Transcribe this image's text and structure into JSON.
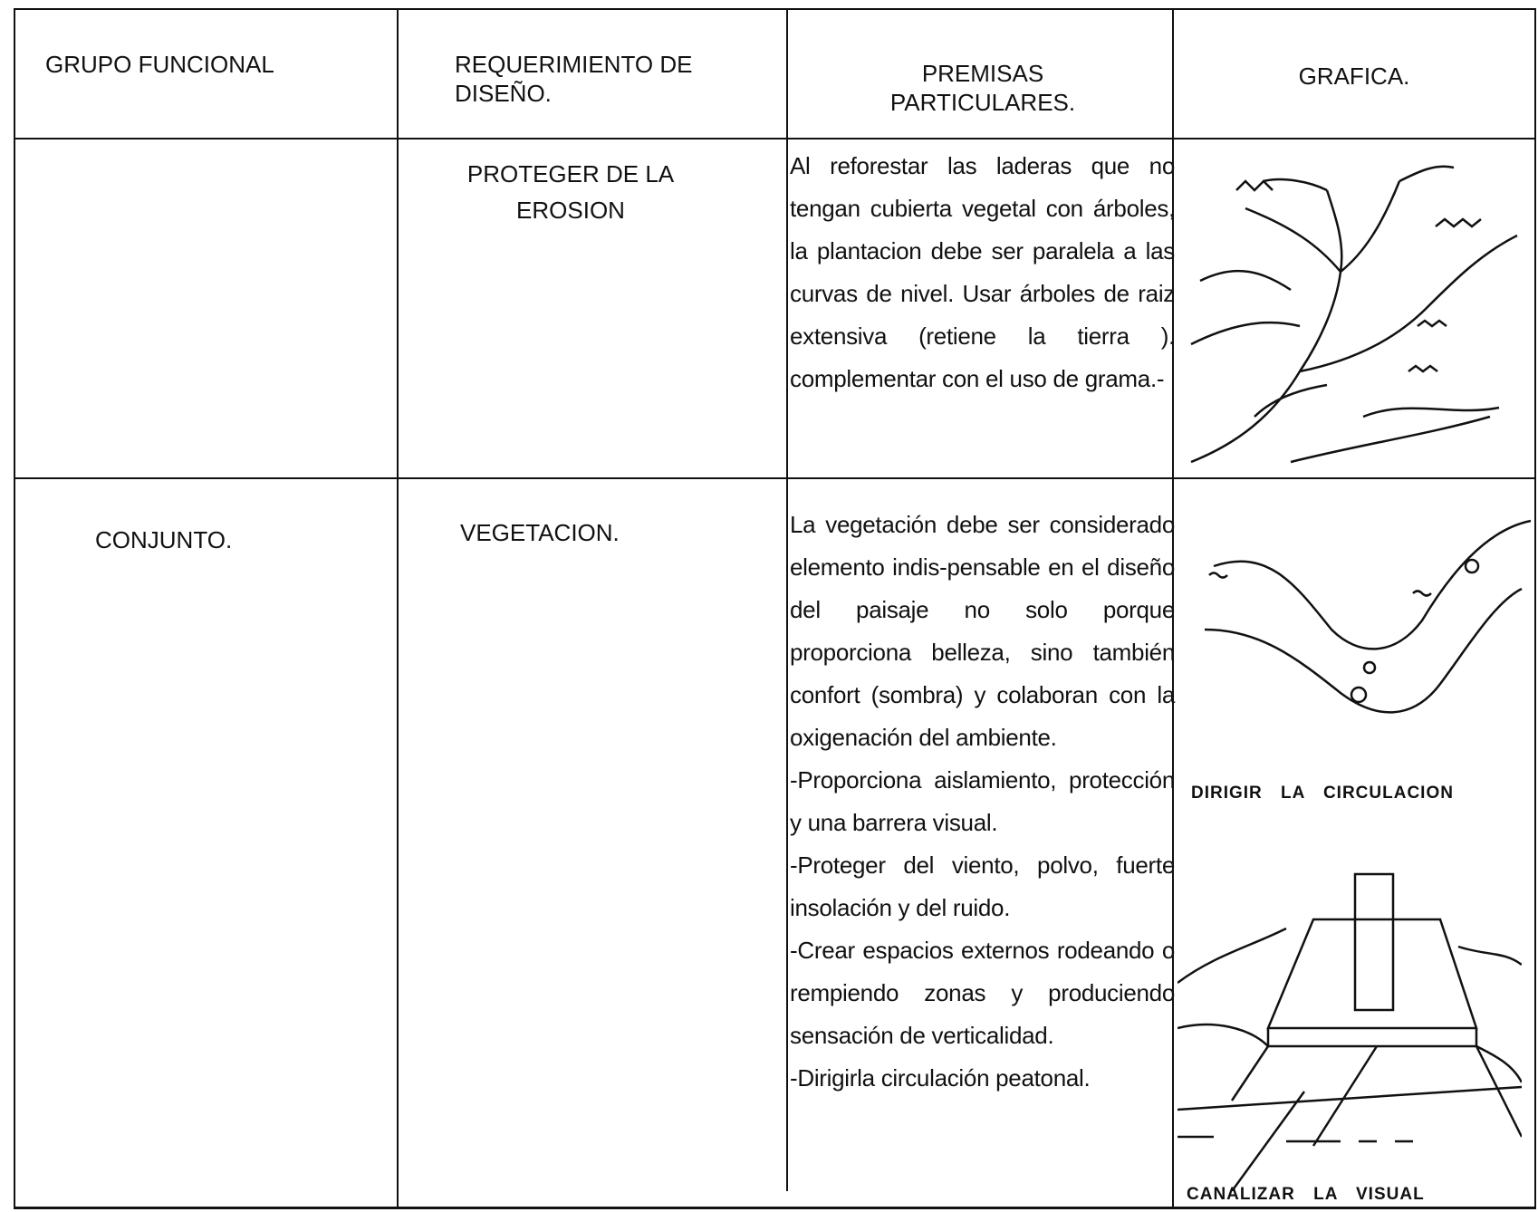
{
  "table": {
    "headers": [
      "GRUPO FUNCIONAL",
      "REQUERIMIENTO DE DISEÑO.",
      "PREMISAS PARTICULARES.",
      "GRAFICA."
    ],
    "rows": [
      {
        "requerimiento": "PROTEGER DE LA EROSION",
        "premisas": [
          "Al reforestar las laderas que no tengan cubierta vegetal con árboles, la plantacion debe ser paralela a las curvas de nivel. Usar árboles de raiz extensiva (retiene la tierra ). complementar con el uso de grama.-"
        ]
      },
      {
        "grupo": "CONJUNTO.",
        "requerimiento": "VEGETACION.",
        "premisas": [
          "La vegetación debe ser considerado elemento indis-pensable en el diseño del paisaje no solo porque proporciona belleza, sino también confort (sombra) y colaboran con la oxigenación del ambiente.",
          "-Proporciona aislamiento, protección y una barrera visual.",
          "-Proteger del viento, polvo, fuerte insolación y del ruido.",
          "-Crear espacios externos rodeando o rempiendo zonas y produciendo sensación de verticalidad.",
          "-Dirigirla circulación peatonal."
        ],
        "graficas": [
          "DIRIGIR LA CIRCULACION",
          "CANALIZAR LA VISUAL"
        ]
      }
    ]
  }
}
